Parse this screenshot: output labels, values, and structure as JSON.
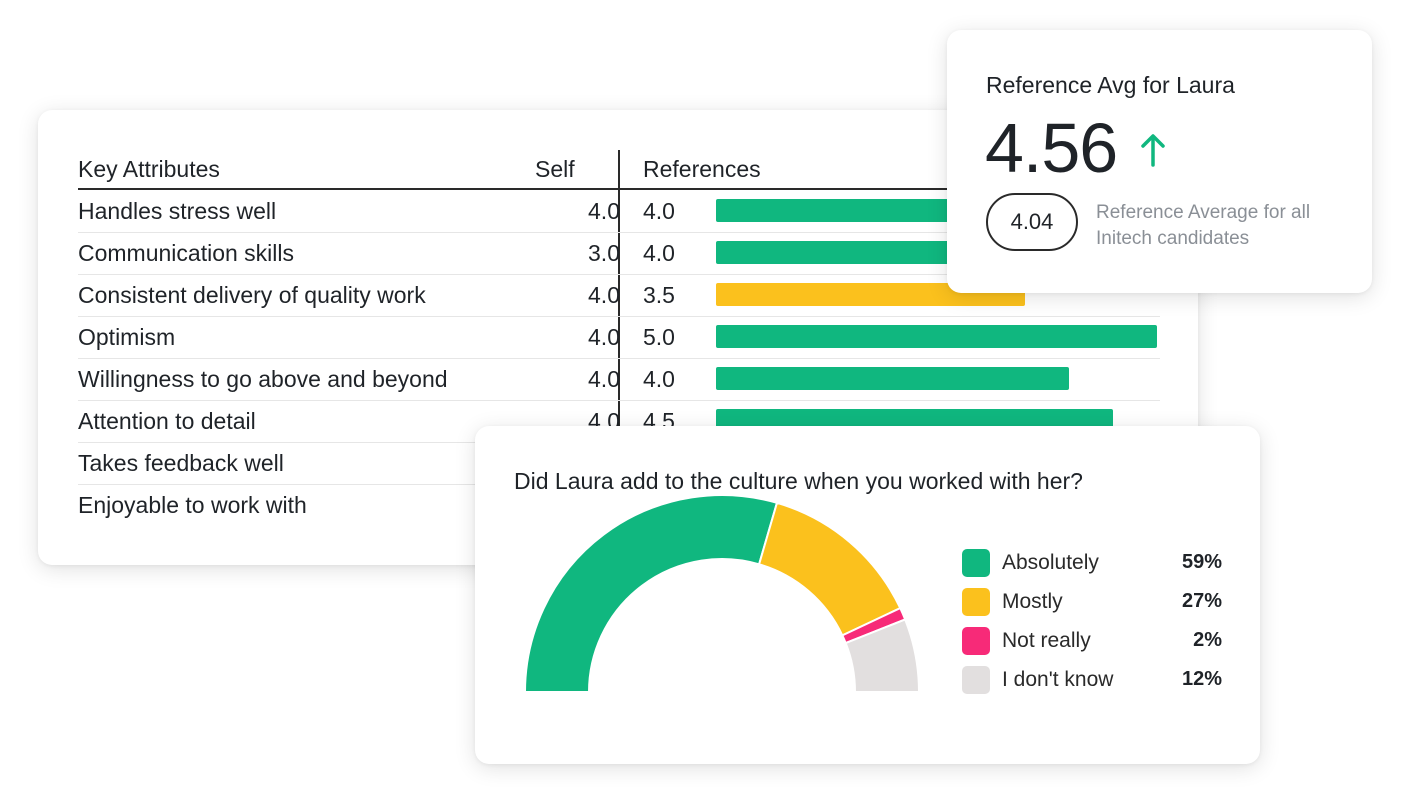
{
  "attributes": {
    "headers": {
      "attribute": "Key Attributes",
      "self": "Self",
      "references": "References"
    },
    "max_score": 5,
    "rows": [
      {
        "name": "Handles stress well",
        "self": "4.0",
        "ref": "4.0",
        "ref_value": 4.0,
        "color": "#10b77f"
      },
      {
        "name": "Communication skills",
        "self": "3.0",
        "ref": "4.0",
        "ref_value": 4.0,
        "color": "#10b77f"
      },
      {
        "name": "Consistent delivery of quality work",
        "self": "4.0",
        "ref": "3.5",
        "ref_value": 3.5,
        "color": "#fbc11d"
      },
      {
        "name": "Optimism",
        "self": "4.0",
        "ref": "5.0",
        "ref_value": 5.0,
        "color": "#10b77f"
      },
      {
        "name": "Willingness to go above and beyond",
        "self": "4.0",
        "ref": "4.0",
        "ref_value": 4.0,
        "color": "#10b77f"
      },
      {
        "name": "Attention to detail",
        "self": "4.0",
        "ref": "4.5",
        "ref_value": 4.5,
        "color": "#10b77f"
      },
      {
        "name": "Takes feedback well",
        "self": "",
        "ref": "",
        "ref_value": null,
        "color": "#10b77f"
      },
      {
        "name": "Enjoyable to work with",
        "self": "",
        "ref": "",
        "ref_value": null,
        "color": "#10b77f"
      }
    ]
  },
  "reference_avg": {
    "title": "Reference Avg for Laura",
    "value": "4.56",
    "trend_icon": "arrow-up-icon",
    "trend_color": "#10b77f",
    "compare_value": "4.04",
    "compare_label": "Reference Average for all Initech candidates"
  },
  "culture": {
    "question": "Did Laura add to the culture when you worked with her?"
  },
  "chart_data": {
    "type": "pie",
    "subtype": "semicircle-gauge",
    "title": "Did Laura add to the culture when you worked with her?",
    "slices": [
      {
        "label": "Absolutely",
        "value": 59,
        "display": "59%",
        "color": "#10b77f"
      },
      {
        "label": "Mostly",
        "value": 27,
        "display": "27%",
        "color": "#fbc11d"
      },
      {
        "label": "Not really",
        "value": 2,
        "display": "2%",
        "color": "#f72a78"
      },
      {
        "label": "I don't know",
        "value": 12,
        "display": "12%",
        "color": "#e2dfdf"
      }
    ]
  }
}
